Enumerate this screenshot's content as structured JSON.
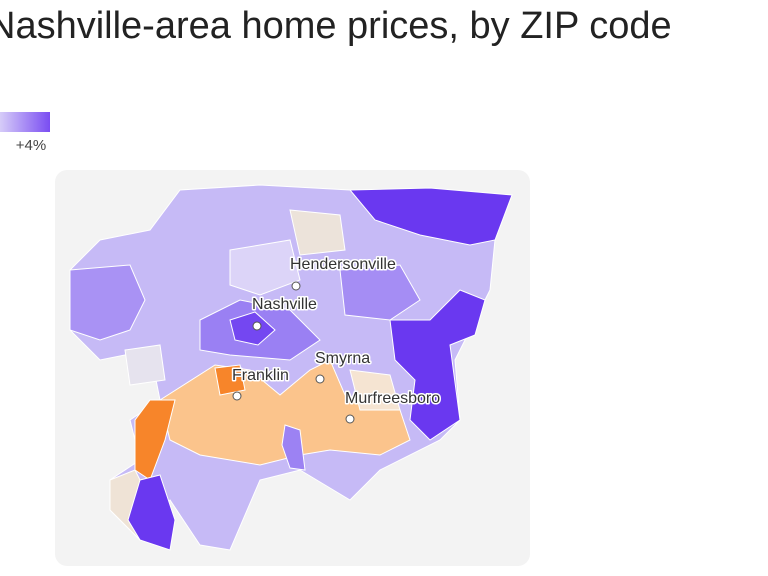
{
  "header": {
    "title": "Nashville-area home prices, by ZIP code"
  },
  "legend": {
    "label": "+4%"
  },
  "map": {
    "cities": [
      "Hendersonville",
      "Nashville",
      "Smyrna",
      "Franklin",
      "Murfreesboro"
    ]
  }
}
